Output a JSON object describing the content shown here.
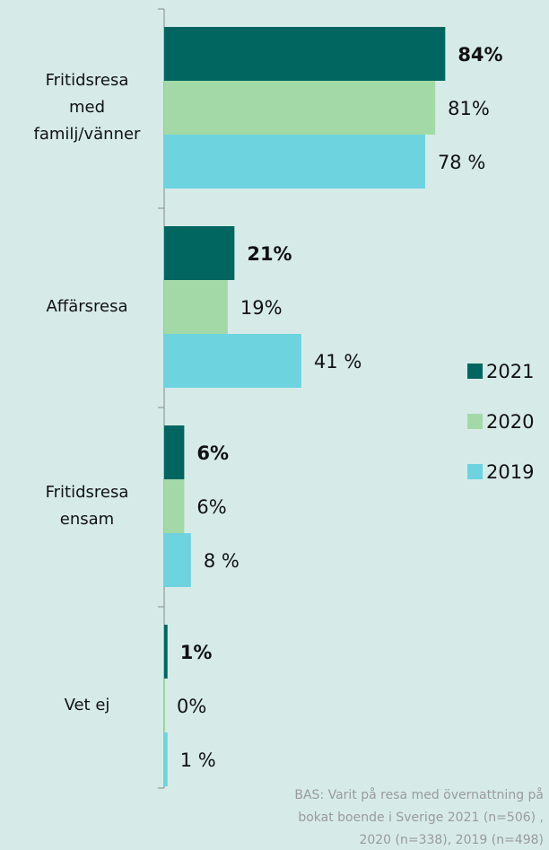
{
  "chart_data": {
    "type": "barh",
    "categories": [
      "Fritidsresa\nmed\nfamilj/vänner",
      "Affärsresa",
      "Fritidsresa\nensam",
      "Vet ej"
    ],
    "series": [
      {
        "name": "2021",
        "color": "#00665f",
        "values": [
          84,
          21,
          6,
          1
        ],
        "value_labels": [
          "84%",
          "21%",
          "6%",
          "1%"
        ],
        "bold": true
      },
      {
        "name": "2020",
        "color": "#a3d9a6",
        "values": [
          81,
          19,
          6,
          0
        ],
        "value_labels": [
          "81%",
          "19%",
          "6%",
          "0%"
        ]
      },
      {
        "name": "2019",
        "color": "#6cd3df",
        "values": [
          78,
          41,
          8,
          1
        ],
        "value_labels": [
          "78 %",
          "41 %",
          "8 %",
          "1 %"
        ]
      }
    ],
    "xlim": [
      0,
      100
    ],
    "legend": "right",
    "note": "BAS: Varit på resa med övernattning på\nbokat boende i Sverige 2021 (n=506) ,\n2020 (n=338), 2019 (n=498)"
  }
}
